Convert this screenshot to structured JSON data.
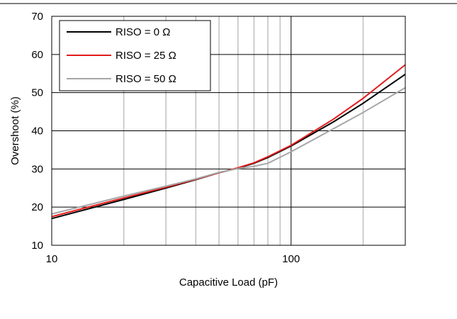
{
  "chart_data": {
    "type": "line",
    "xlabel": "Capacitive Load (pF)",
    "ylabel": "Overshoot (%)",
    "x_scale": "log",
    "xlim": [
      10,
      300
    ],
    "ylim": [
      10,
      70
    ],
    "x_ticks": [
      10,
      100
    ],
    "x_tick_labels": [
      "10",
      "100"
    ],
    "y_ticks": [
      10,
      20,
      30,
      40,
      50,
      60,
      70
    ],
    "y_tick_labels": [
      "10",
      "20",
      "30",
      "40",
      "50",
      "60",
      "70"
    ],
    "grid": true,
    "legend_position": "top-left",
    "series": [
      {
        "name": "RISO = 0 Ω",
        "color": "#000000",
        "x": [
          10,
          20,
          30,
          40,
          50,
          60,
          70,
          80,
          100,
          150,
          200,
          300
        ],
        "y": [
          17.0,
          22.0,
          25.0,
          27.2,
          29.0,
          30.2,
          31.5,
          33.0,
          36.0,
          42.3,
          47.2,
          54.8
        ]
      },
      {
        "name": "RISO = 25 Ω",
        "color": "#e31b1b",
        "x": [
          10,
          20,
          30,
          40,
          50,
          60,
          70,
          80,
          100,
          150,
          200,
          300
        ],
        "y": [
          17.5,
          22.4,
          25.2,
          27.3,
          29.0,
          30.3,
          31.6,
          33.2,
          36.2,
          43.0,
          48.5,
          57.3
        ]
      },
      {
        "name": "RISO = 50 Ω",
        "color": "#a6a6a6",
        "x": [
          10,
          20,
          30,
          40,
          50,
          60,
          70,
          80,
          100,
          150,
          200,
          300
        ],
        "y": [
          18.2,
          22.9,
          25.5,
          27.4,
          29.1,
          30.1,
          30.7,
          31.5,
          34.5,
          40.5,
          44.8,
          51.3
        ]
      }
    ]
  }
}
